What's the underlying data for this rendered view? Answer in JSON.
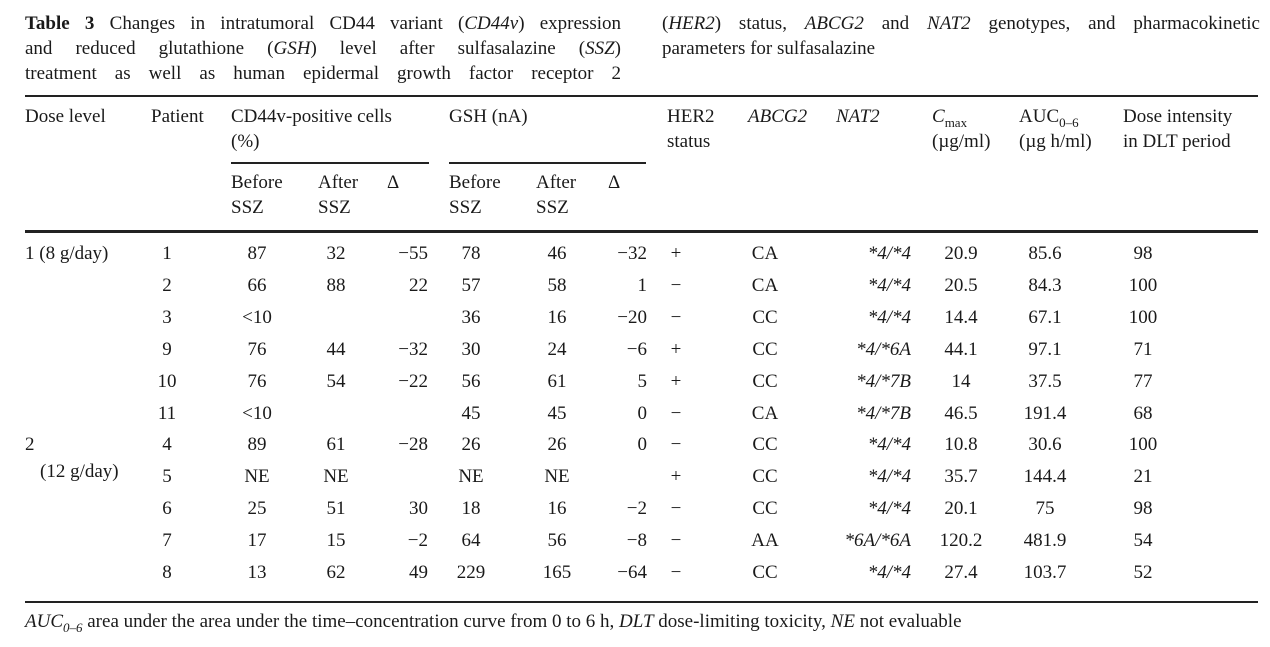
{
  "caption": {
    "left_line1_parts": [
      "Table 3",
      " Changes in intratumoral CD44 variant (",
      "CD44v",
      ") expression"
    ],
    "left_line2_parts": [
      "and reduced glutathione (",
      "GSH",
      ") level after sulfasalazine (",
      "SSZ",
      ")"
    ],
    "left_line3": "treatment as well as human epidermal growth factor receptor 2",
    "right_line1_parts": [
      "(",
      "HER2",
      ") status, ",
      "ABCG2",
      " and ",
      "NAT2",
      " genotypes, and pharmacokinetic"
    ],
    "right_line2": "parameters for sulfasalazine"
  },
  "headers": {
    "dose_level": "Dose level",
    "patient": "Patient",
    "cd44v_group_1": "CD44v-positive cells",
    "cd44v_group_2": "(%)",
    "gsh_group": "GSH (nA)",
    "her2_1": "HER2",
    "her2_2": "status",
    "abcg2": "ABCG2",
    "nat2": "NAT2",
    "cmax_c": "C",
    "cmax_sub": "max",
    "cmax_unit": "(µg/ml)",
    "auc": "AUC",
    "auc_sub": "0–6",
    "auc_unit": "(µg h/ml)",
    "dose_int_1": "Dose intensity",
    "dose_int_2": "in DLT period",
    "before_1": "Before",
    "before_2": "SSZ",
    "after_1": "After",
    "after_2": "SSZ",
    "delta": "Δ"
  },
  "dose_labels": {
    "d1": "1 (8 g/day)",
    "d2_line1": "2",
    "d2_line2": "(12 g/day)"
  },
  "rows": [
    {
      "patient": "1",
      "cd_before": "87",
      "cd_after": "32",
      "cd_delta": "−55",
      "gsh_before": "78",
      "gsh_after": "46",
      "gsh_delta": "−32",
      "her2": "+",
      "abcg2": "CA",
      "nat2": "*4/*4",
      "cmax": "20.9",
      "auc": "85.6",
      "dose_int": "98"
    },
    {
      "patient": "2",
      "cd_before": "66",
      "cd_after": "88",
      "cd_delta": "22",
      "gsh_before": "57",
      "gsh_after": "58",
      "gsh_delta": "1",
      "her2": "−",
      "abcg2": "CA",
      "nat2": "*4/*4",
      "cmax": "20.5",
      "auc": "84.3",
      "dose_int": "100"
    },
    {
      "patient": "3",
      "cd_before": "<10",
      "cd_after": "",
      "cd_delta": "",
      "gsh_before": "36",
      "gsh_after": "16",
      "gsh_delta": "−20",
      "her2": "−",
      "abcg2": "CC",
      "nat2": "*4/*4",
      "cmax": "14.4",
      "auc": "67.1",
      "dose_int": "100"
    },
    {
      "patient": "9",
      "cd_before": "76",
      "cd_after": "44",
      "cd_delta": "−32",
      "gsh_before": "30",
      "gsh_after": "24",
      "gsh_delta": "−6",
      "her2": "+",
      "abcg2": "CC",
      "nat2": "*4/*6A",
      "cmax": "44.1",
      "auc": "97.1",
      "dose_int": "71"
    },
    {
      "patient": "10",
      "cd_before": "76",
      "cd_after": "54",
      "cd_delta": "−22",
      "gsh_before": "56",
      "gsh_after": "61",
      "gsh_delta": "5",
      "her2": "+",
      "abcg2": "CC",
      "nat2": "*4/*7B",
      "cmax": "14",
      "auc": "37.5",
      "dose_int": "77"
    },
    {
      "patient": "11",
      "cd_before": "<10",
      "cd_after": "",
      "cd_delta": "",
      "gsh_before": "45",
      "gsh_after": "45",
      "gsh_delta": "0",
      "her2": "−",
      "abcg2": "CA",
      "nat2": "*4/*7B",
      "cmax": "46.5",
      "auc": "191.4",
      "dose_int": "68"
    },
    {
      "patient": "4",
      "cd_before": "89",
      "cd_after": "61",
      "cd_delta": "−28",
      "gsh_before": "26",
      "gsh_after": "26",
      "gsh_delta": "0",
      "her2": "−",
      "abcg2": "CC",
      "nat2": "*4/*4",
      "cmax": "10.8",
      "auc": "30.6",
      "dose_int": "100"
    },
    {
      "patient": "5",
      "cd_before": "NE",
      "cd_after": "NE",
      "cd_delta": "",
      "gsh_before": "NE",
      "gsh_after": "NE",
      "gsh_delta": "",
      "her2": "+",
      "abcg2": "CC",
      "nat2": "*4/*4",
      "cmax": "35.7",
      "auc": "144.4",
      "dose_int": "21"
    },
    {
      "patient": "6",
      "cd_before": "25",
      "cd_after": "51",
      "cd_delta": "30",
      "gsh_before": "18",
      "gsh_after": "16",
      "gsh_delta": "−2",
      "her2": "−",
      "abcg2": "CC",
      "nat2": "*4/*4",
      "cmax": "20.1",
      "auc": "75",
      "dose_int": "98"
    },
    {
      "patient": "7",
      "cd_before": "17",
      "cd_after": "15",
      "cd_delta": "−2",
      "gsh_before": "64",
      "gsh_after": "56",
      "gsh_delta": "−8",
      "her2": "−",
      "abcg2": "AA",
      "nat2": "*6A/*6A",
      "cmax": "120.2",
      "auc": "481.9",
      "dose_int": "54"
    },
    {
      "patient": "8",
      "cd_before": "13",
      "cd_after": "62",
      "cd_delta": "49",
      "gsh_before": "229",
      "gsh_after": "165",
      "gsh_delta": "−64",
      "her2": "−",
      "abcg2": "CC",
      "nat2": "*4/*4",
      "cmax": "27.4",
      "auc": "103.7",
      "dose_int": "52"
    }
  ],
  "footnote": {
    "auc": "AUC",
    "auc_sub": "0–6",
    "auc_text": " area under the area under the time–concentration curve from 0 to 6 h, ",
    "dlt": "DLT",
    "dlt_text": " dose-limiting toxicity, ",
    "ne": "NE",
    "ne_text": " not evaluable"
  }
}
